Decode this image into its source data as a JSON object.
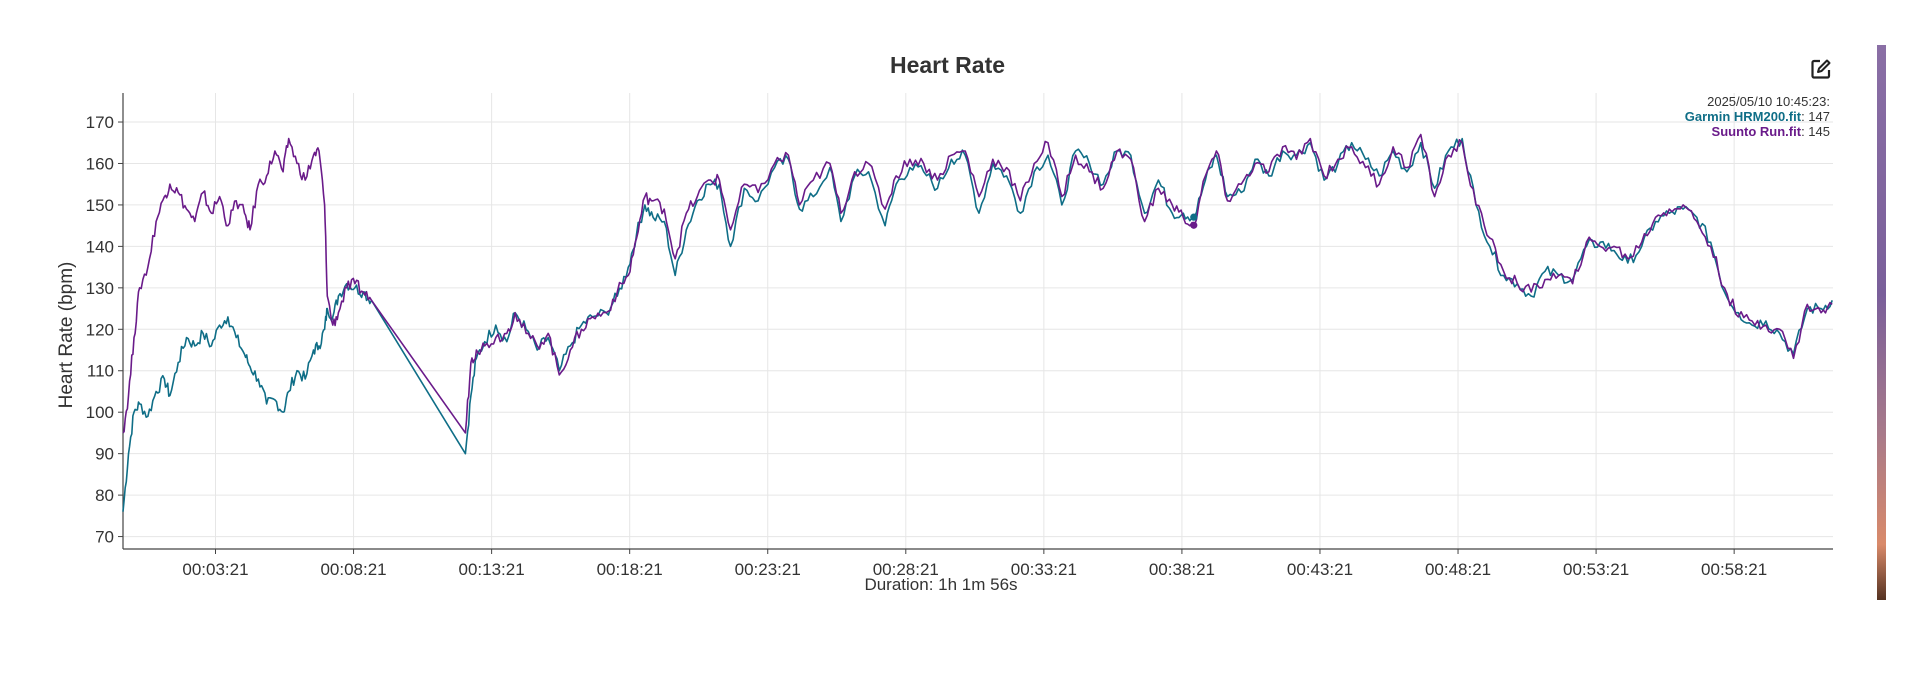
{
  "chart": {
    "title": "Heart Rate",
    "tooltip": {
      "timestamp": "2025/05/10 10:45:23:",
      "entries": [
        {
          "name": "Garmin HRM200.fit",
          "value": "147",
          "color": "#0f6e87"
        },
        {
          "name": "Suunto Run.fit",
          "value": "145",
          "color": "#6a1b8a"
        }
      ]
    },
    "icons": {
      "edit": "edit-icon"
    }
  },
  "chart_data": {
    "type": "line",
    "title": "Heart Rate",
    "xlabel": "Duration: 1h 1m 56s",
    "ylabel": "Heart Rate (bpm)",
    "x_unit": "minutes",
    "xlim": [
      0,
      61.93
    ],
    "ylim": [
      67,
      177
    ],
    "yticks": [
      70,
      80,
      90,
      100,
      110,
      120,
      130,
      140,
      150,
      160,
      170
    ],
    "xticks": [
      {
        "x": 3.35,
        "label": "00:03:21"
      },
      {
        "x": 8.35,
        "label": "00:08:21"
      },
      {
        "x": 13.35,
        "label": "00:13:21"
      },
      {
        "x": 18.35,
        "label": "00:18:21"
      },
      {
        "x": 23.35,
        "label": "00:23:21"
      },
      {
        "x": 28.35,
        "label": "00:28:21"
      },
      {
        "x": 33.35,
        "label": "00:33:21"
      },
      {
        "x": 38.35,
        "label": "00:38:21"
      },
      {
        "x": 43.35,
        "label": "00:43:21"
      },
      {
        "x": 48.35,
        "label": "00:48:21"
      },
      {
        "x": 53.35,
        "label": "00:53:21"
      },
      {
        "x": 58.35,
        "label": "00:58:21"
      }
    ],
    "grid": true,
    "hover_x": 38.78,
    "series": [
      {
        "name": "Garmin HRM200.fit",
        "color": "#0f6e87",
        "x": [
          0,
          0.2,
          0.4,
          0.6,
          0.9,
          1.2,
          1.5,
          1.7,
          2.0,
          2.3,
          2.6,
          2.9,
          3.2,
          3.5,
          3.8,
          4.1,
          4.4,
          4.6,
          4.9,
          5.2,
          5.5,
          5.8,
          6.0,
          6.3,
          6.6,
          6.9,
          7.1,
          7.3,
          7.4,
          7.6,
          7.8,
          8.1,
          8.4,
          8.7,
          9.0,
          12.4,
          12.6,
          12.8,
          13.1,
          13.5,
          13.9,
          14.2,
          14.6,
          15.0,
          15.4,
          15.8,
          16.2,
          16.6,
          17.0,
          17.5,
          17.9,
          18.3,
          18.6,
          18.9,
          19.2,
          19.6,
          20.0,
          20.4,
          20.8,
          21.2,
          21.6,
          22.0,
          22.5,
          23.0,
          23.6,
          24.1,
          24.5,
          25.0,
          25.6,
          26.0,
          26.5,
          27.0,
          27.6,
          28.0,
          28.5,
          29.0,
          29.5,
          30.0,
          30.5,
          31.0,
          31.5,
          32.0,
          32.5,
          33.0,
          33.5,
          34.0,
          34.5,
          35.0,
          35.5,
          36.0,
          36.5,
          37.0,
          37.5,
          38.0,
          38.4,
          38.8,
          39.2,
          39.6,
          40.0,
          40.5,
          41.0,
          41.5,
          42.0,
          42.5,
          43.0,
          43.5,
          44.0,
          44.5,
          45.0,
          45.5,
          46.0,
          46.5,
          47.0,
          47.5,
          48.0,
          48.5,
          49.0,
          49.5,
          50.0,
          50.5,
          51.0,
          51.5,
          52.0,
          52.5,
          53.0,
          53.5,
          54.0,
          54.5,
          55.0,
          55.5,
          56.0,
          56.5,
          57.0,
          57.5,
          58.0,
          58.5,
          59.0,
          59.5,
          60.0,
          60.5,
          61.0,
          61.5,
          61.9
        ],
        "y": [
          76,
          90,
          100,
          102,
          99,
          105,
          108,
          104,
          112,
          118,
          116,
          119,
          116,
          121,
          123,
          118,
          114,
          111,
          108,
          102,
          103,
          100,
          105,
          110,
          108,
          115,
          116,
          120,
          125,
          123,
          128,
          131,
          130,
          129,
          127,
          90,
          104,
          113,
          117,
          121,
          117,
          124,
          120,
          115,
          118,
          110,
          116,
          121,
          123,
          124,
          128,
          135,
          143,
          150,
          147,
          146,
          133,
          144,
          151,
          155,
          155,
          140,
          154,
          151,
          159,
          161,
          149,
          152,
          159,
          146,
          157,
          158,
          145,
          155,
          159,
          158,
          154,
          161,
          162,
          148,
          160,
          157,
          148,
          158,
          162,
          150,
          163,
          160,
          155,
          163,
          162,
          148,
          156,
          148,
          148,
          147,
          156,
          162,
          152,
          153,
          161,
          157,
          163,
          162,
          165,
          156,
          160,
          165,
          161,
          157,
          163,
          158,
          165,
          154,
          163,
          166,
          150,
          140,
          133,
          131,
          128,
          134,
          133,
          132,
          140,
          141,
          139,
          136,
          140,
          146,
          148,
          149,
          147,
          141,
          129,
          124,
          121,
          122,
          119,
          114,
          125,
          125,
          127
        ]
      },
      {
        "name": "Suunto Run.fit",
        "color": "#6a1b8a",
        "x": [
          0,
          0.2,
          0.4,
          0.6,
          0.9,
          1.2,
          1.5,
          1.7,
          2.0,
          2.3,
          2.6,
          2.9,
          3.2,
          3.5,
          3.8,
          4.1,
          4.4,
          4.6,
          4.9,
          5.2,
          5.5,
          5.8,
          6.0,
          6.3,
          6.6,
          6.9,
          7.1,
          7.3,
          7.4,
          7.6,
          7.8,
          8.1,
          8.4,
          8.7,
          9.0,
          12.4,
          12.6,
          12.8,
          13.1,
          13.5,
          13.9,
          14.2,
          14.6,
          15.0,
          15.4,
          15.8,
          16.2,
          16.6,
          17.0,
          17.5,
          17.9,
          18.3,
          18.6,
          18.9,
          19.2,
          19.6,
          20.0,
          20.4,
          20.8,
          21.2,
          21.6,
          22.0,
          22.5,
          23.0,
          23.6,
          24.1,
          24.5,
          25.0,
          25.6,
          26.0,
          26.5,
          27.0,
          27.6,
          28.0,
          28.5,
          29.0,
          29.5,
          30.0,
          30.5,
          31.0,
          31.5,
          32.0,
          32.5,
          33.0,
          33.5,
          34.0,
          34.5,
          35.0,
          35.5,
          36.0,
          36.5,
          37.0,
          37.5,
          38.0,
          38.4,
          38.8,
          39.2,
          39.6,
          40.0,
          40.5,
          41.0,
          41.5,
          42.0,
          42.5,
          43.0,
          43.5,
          44.0,
          44.5,
          45.0,
          45.5,
          46.0,
          46.5,
          47.0,
          47.5,
          48.0,
          48.5,
          49.0,
          49.5,
          50.0,
          50.5,
          51.0,
          51.5,
          52.0,
          52.5,
          53.0,
          53.5,
          54.0,
          54.5,
          55.0,
          55.5,
          56.0,
          56.5,
          57.0,
          57.5,
          58.0,
          58.5,
          59.0,
          59.5,
          60.0,
          60.5,
          61.0,
          61.5,
          61.9
        ],
        "y": [
          95,
          104,
          118,
          130,
          135,
          146,
          152,
          155,
          153,
          149,
          146,
          153,
          148,
          152,
          145,
          151,
          148,
          144,
          155,
          157,
          163,
          158,
          166,
          160,
          156,
          162,
          163,
          150,
          128,
          121,
          124,
          130,
          131,
          129,
          127,
          95,
          112,
          115,
          116,
          118,
          119,
          124,
          119,
          116,
          119,
          109,
          115,
          120,
          123,
          124,
          129,
          133,
          142,
          152,
          151,
          149,
          137,
          148,
          152,
          156,
          156,
          144,
          155,
          153,
          160,
          162,
          150,
          156,
          160,
          148,
          158,
          160,
          149,
          157,
          161,
          160,
          156,
          162,
          163,
          152,
          161,
          159,
          151,
          160,
          165,
          152,
          162,
          158,
          154,
          163,
          161,
          146,
          154,
          150,
          147,
          145,
          157,
          163,
          151,
          155,
          160,
          158,
          164,
          161,
          166,
          157,
          161,
          164,
          159,
          155,
          164,
          159,
          167,
          152,
          162,
          165,
          150,
          142,
          134,
          131,
          129,
          132,
          133,
          131,
          141,
          140,
          140,
          137,
          141,
          147,
          149,
          150,
          146,
          140,
          130,
          123,
          122,
          121,
          120,
          113,
          126,
          124,
          126
        ]
      }
    ]
  }
}
